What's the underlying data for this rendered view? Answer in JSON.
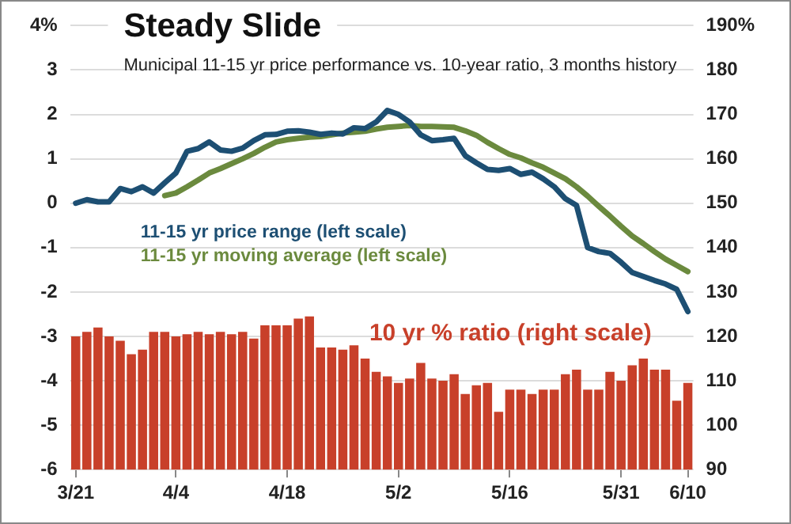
{
  "chart_data": {
    "type": "bar",
    "title": "Steady Slide",
    "subtitle": "Municipal 11-15 yr price performance vs. 10-year ratio, 3 months history",
    "categories": [
      "3/21",
      null,
      null,
      null,
      null,
      null,
      null,
      null,
      null,
      "4/4",
      null,
      null,
      null,
      null,
      null,
      null,
      null,
      null,
      null,
      "4/18",
      null,
      null,
      null,
      null,
      null,
      null,
      null,
      null,
      null,
      "5/2",
      null,
      null,
      null,
      null,
      null,
      null,
      null,
      null,
      null,
      "5/16",
      null,
      null,
      null,
      null,
      null,
      null,
      null,
      null,
      null,
      "5/31",
      null,
      null,
      null,
      null,
      null,
      "6/10"
    ],
    "series": [
      {
        "name": "10 yr % ratio (right scale)",
        "type": "bar",
        "axis": "y2",
        "color": "#c8402a",
        "values": [
          120,
          121,
          122,
          120,
          119,
          116,
          117,
          121,
          121,
          120,
          120.5,
          121,
          120.5,
          121,
          120.5,
          121,
          119.5,
          122.5,
          122.5,
          122.5,
          124,
          124.5,
          117.5,
          117.5,
          117,
          118,
          115,
          112,
          111,
          109.5,
          110.5,
          114,
          110.5,
          110,
          111.5,
          107,
          109,
          109.5,
          103,
          108,
          108,
          107,
          108,
          108,
          111.5,
          112.5,
          108,
          108,
          112,
          110,
          113.5,
          115,
          112.5,
          112.5,
          105.5,
          109.5
        ]
      },
      {
        "name": "11-15 yr price range (left scale)",
        "type": "line",
        "axis": "y",
        "color": "#1d4f73",
        "values": [
          0,
          0.08,
          0.03,
          0.03,
          0.33,
          0.26,
          0.37,
          0.23,
          0.46,
          0.68,
          1.17,
          1.23,
          1.38,
          1.2,
          1.17,
          1.24,
          1.41,
          1.54,
          1.55,
          1.62,
          1.63,
          1.6,
          1.55,
          1.58,
          1.56,
          1.7,
          1.68,
          1.83,
          2.09,
          2.0,
          1.83,
          1.54,
          1.41,
          1.43,
          1.46,
          1.07,
          0.91,
          0.76,
          0.74,
          0.78,
          0.65,
          0.7,
          0.55,
          0.37,
          0.1,
          -0.05,
          -1.0,
          -1.09,
          -1.13,
          -1.33,
          -1.56,
          -1.65,
          -1.74,
          -1.82,
          -1.94,
          -2.44
        ]
      },
      {
        "name": "11-15 yr moving average (left scale)",
        "type": "line",
        "axis": "y",
        "color": "#6b8a3e",
        "values": [
          null,
          null,
          null,
          null,
          null,
          null,
          null,
          null,
          0.17,
          0.23,
          0.37,
          0.52,
          0.68,
          0.78,
          0.89,
          1.0,
          1.12,
          1.26,
          1.38,
          1.43,
          1.46,
          1.49,
          1.5,
          1.54,
          1.58,
          1.6,
          1.62,
          1.67,
          1.71,
          1.73,
          1.75,
          1.73,
          1.73,
          1.72,
          1.71,
          1.63,
          1.53,
          1.37,
          1.23,
          1.1,
          1.02,
          0.91,
          0.81,
          0.68,
          0.55,
          0.37,
          0.16,
          -0.07,
          -0.29,
          -0.52,
          -0.74,
          -0.91,
          -1.09,
          -1.26,
          -1.4,
          -1.54
        ]
      }
    ],
    "ylim": [
      -6,
      4
    ],
    "yticks": [
      -6,
      -5,
      -4,
      -3,
      -2,
      -1,
      0,
      1,
      2,
      3,
      {
        "value": 4,
        "label": "4%"
      }
    ],
    "y2lim": [
      90,
      190
    ],
    "y2ticks": [
      90,
      100,
      110,
      120,
      130,
      140,
      150,
      160,
      170,
      180,
      {
        "value": 190,
        "label": "190%"
      }
    ],
    "grid": "y"
  }
}
